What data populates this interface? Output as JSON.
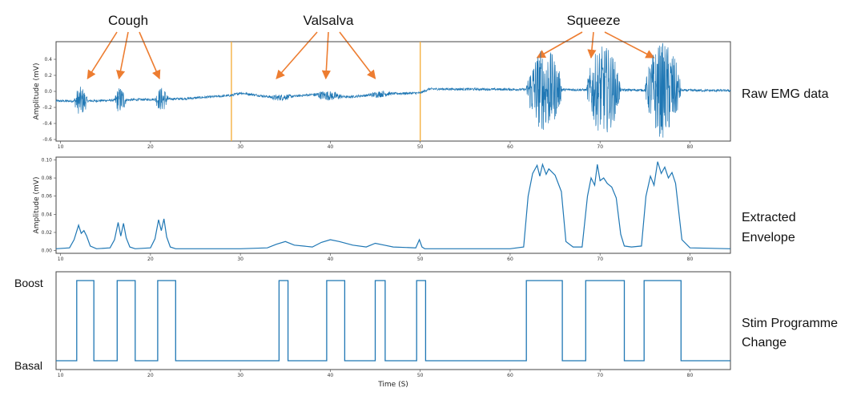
{
  "colors": {
    "signal": "#1f77b4",
    "arrow": "#ed7d31",
    "marker": "#f5b041",
    "axis": "#444444"
  },
  "annotations": [
    {
      "label": "Cough",
      "target_times": [
        13,
        16.5,
        21
      ]
    },
    {
      "label": "Valsalva",
      "target_times": [
        34,
        39.5,
        45
      ]
    },
    {
      "label": "Squeeze",
      "target_times": [
        63,
        69,
        76
      ]
    }
  ],
  "chart_data": [
    {
      "type": "line",
      "name": "raw",
      "side_label": [
        "Raw EMG data"
      ],
      "ylabel": "Amplitude (mV)",
      "xlim": [
        9.5,
        84.5
      ],
      "ylim": [
        -0.62,
        0.62
      ],
      "yticks": [
        -0.6,
        -0.4,
        -0.2,
        0.0,
        0.2,
        0.4
      ],
      "ytick_labels": [
        "-0.6",
        "-0.4",
        "-0.2",
        "0.0",
        "0.2",
        "0.4"
      ],
      "xticks": [
        10,
        20,
        30,
        40,
        50,
        60,
        70,
        80
      ],
      "xtick_labels": [
        "10",
        "20",
        "30",
        "40",
        "50",
        "60",
        "70",
        "80"
      ],
      "markers_x": [
        29,
        50
      ],
      "baseline_segments": [
        [
          9.5,
          -0.12
        ],
        [
          13,
          -0.12
        ],
        [
          16,
          -0.11
        ],
        [
          20,
          -0.1
        ],
        [
          24,
          -0.09
        ],
        [
          29,
          -0.05
        ],
        [
          30,
          -0.02
        ],
        [
          34,
          -0.08
        ],
        [
          38,
          -0.04
        ],
        [
          42,
          -0.07
        ],
        [
          46,
          -0.03
        ],
        [
          50,
          -0.02
        ],
        [
          51,
          0.03
        ],
        [
          84.5,
          0.01
        ]
      ],
      "bursts": [
        {
          "start": 11.5,
          "end": 13.0,
          "amplitude": 0.18
        },
        {
          "start": 16.0,
          "end": 17.3,
          "amplitude": 0.17
        },
        {
          "start": 20.5,
          "end": 22.0,
          "amplitude": 0.15
        },
        {
          "start": 33.0,
          "end": 36.0,
          "amplitude": 0.04
        },
        {
          "start": 38.0,
          "end": 41.5,
          "amplitude": 0.06
        },
        {
          "start": 44.0,
          "end": 47.0,
          "amplitude": 0.04
        },
        {
          "start": 61.8,
          "end": 65.8,
          "amplitude": 0.52
        },
        {
          "start": 68.5,
          "end": 72.3,
          "amplitude": 0.55
        },
        {
          "start": 75.0,
          "end": 79.0,
          "amplitude": 0.6
        }
      ]
    },
    {
      "type": "line",
      "name": "envelope",
      "side_label": [
        "Extracted",
        "Envelope"
      ],
      "ylabel": "Amplitude (mV)",
      "xlim": [
        9.5,
        84.5
      ],
      "ylim": [
        -0.003,
        0.103
      ],
      "yticks": [
        0.0,
        0.02,
        0.04,
        0.06,
        0.08,
        0.1
      ],
      "ytick_labels": [
        "0.00",
        "0.02",
        "0.04",
        "0.06",
        "0.08",
        "0.10"
      ],
      "xticks": [
        10,
        20,
        30,
        40,
        50,
        60,
        70,
        80
      ],
      "xtick_labels": [
        "10",
        "20",
        "30",
        "40",
        "50",
        "60",
        "70",
        "80"
      ],
      "x": [
        9.5,
        11.0,
        11.5,
        12.0,
        12.3,
        12.6,
        12.9,
        13.3,
        14.0,
        15.5,
        16.0,
        16.4,
        16.7,
        17.0,
        17.3,
        17.7,
        18.3,
        20.0,
        20.5,
        20.9,
        21.2,
        21.5,
        21.8,
        22.2,
        22.8,
        26.0,
        30.0,
        33.0,
        34.0,
        35.0,
        36.0,
        38.0,
        39.0,
        40.0,
        41.0,
        42.5,
        44.0,
        45.0,
        46.0,
        47.0,
        49.5,
        49.9,
        50.2,
        50.5,
        52.0,
        60.0,
        61.5,
        62.0,
        62.5,
        63.0,
        63.3,
        63.6,
        64.0,
        64.3,
        65.0,
        65.7,
        66.2,
        67.0,
        68.0,
        68.6,
        69.0,
        69.4,
        69.7,
        70.0,
        70.4,
        70.8,
        71.3,
        71.8,
        72.3,
        72.7,
        73.5,
        74.6,
        75.1,
        75.6,
        76.0,
        76.4,
        76.8,
        77.2,
        77.6,
        78.0,
        78.4,
        79.1,
        80.0,
        84.5
      ],
      "y": [
        0.002,
        0.003,
        0.012,
        0.028,
        0.019,
        0.022,
        0.016,
        0.005,
        0.002,
        0.003,
        0.012,
        0.031,
        0.016,
        0.03,
        0.014,
        0.004,
        0.002,
        0.003,
        0.013,
        0.034,
        0.022,
        0.035,
        0.015,
        0.004,
        0.002,
        0.002,
        0.002,
        0.003,
        0.007,
        0.01,
        0.006,
        0.004,
        0.009,
        0.012,
        0.01,
        0.006,
        0.004,
        0.008,
        0.006,
        0.004,
        0.003,
        0.012,
        0.004,
        0.002,
        0.002,
        0.002,
        0.004,
        0.06,
        0.085,
        0.094,
        0.082,
        0.095,
        0.084,
        0.09,
        0.083,
        0.065,
        0.01,
        0.004,
        0.004,
        0.06,
        0.08,
        0.072,
        0.095,
        0.077,
        0.08,
        0.074,
        0.07,
        0.058,
        0.018,
        0.005,
        0.004,
        0.005,
        0.06,
        0.082,
        0.072,
        0.098,
        0.085,
        0.092,
        0.08,
        0.086,
        0.074,
        0.012,
        0.003,
        0.002
      ]
    },
    {
      "type": "line",
      "name": "stim",
      "side_label": [
        "Stim Programme",
        "Change"
      ],
      "xlabel": "Time (S)",
      "xlim": [
        9.5,
        84.5
      ],
      "ylim": [
        -0.05,
        1.05
      ],
      "level_labels": {
        "high": "Boost",
        "low": "Basal"
      },
      "xticks": [
        10,
        20,
        30,
        40,
        50,
        60,
        70,
        80
      ],
      "xtick_labels": [
        "10",
        "20",
        "30",
        "40",
        "50",
        "60",
        "70",
        "80"
      ],
      "boost_intervals": [
        [
          11.8,
          13.7
        ],
        [
          16.3,
          18.3
        ],
        [
          20.8,
          22.8
        ],
        [
          34.3,
          35.3
        ],
        [
          39.6,
          41.6
        ],
        [
          45.0,
          46.1
        ],
        [
          49.6,
          50.6
        ],
        [
          61.8,
          65.8
        ],
        [
          68.4,
          72.7
        ],
        [
          74.9,
          79.0
        ]
      ]
    }
  ]
}
